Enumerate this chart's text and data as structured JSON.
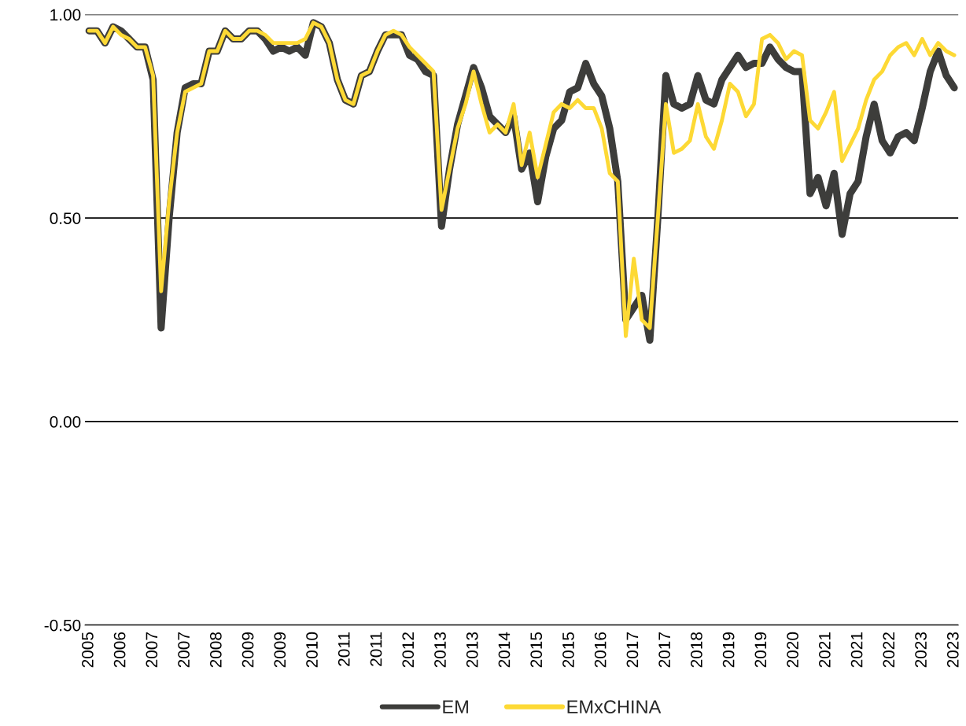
{
  "chart_data": {
    "type": "line",
    "categories": [
      "2005",
      null,
      null,
      null,
      "2006",
      null,
      null,
      null,
      "2007",
      null,
      null,
      null,
      "2007",
      null,
      null,
      null,
      "2008",
      null,
      null,
      null,
      "2009",
      null,
      null,
      null,
      "2009",
      null,
      null,
      null,
      "2010",
      null,
      null,
      null,
      "2011",
      null,
      null,
      null,
      "2011",
      null,
      null,
      null,
      "2012",
      null,
      null,
      null,
      "2013",
      null,
      null,
      null,
      "2013",
      null,
      null,
      null,
      "2014",
      null,
      null,
      null,
      "2015",
      null,
      null,
      null,
      "2015",
      null,
      null,
      null,
      "2016",
      null,
      null,
      null,
      "2017",
      null,
      null,
      null,
      "2017",
      null,
      null,
      null,
      "2018",
      null,
      null,
      null,
      "2019",
      null,
      null,
      null,
      "2019",
      null,
      null,
      null,
      "2020",
      null,
      null,
      null,
      "2021",
      null,
      null,
      null,
      "2021",
      null,
      null,
      null,
      "2022",
      null,
      null,
      null,
      "2023",
      null,
      null,
      null,
      "2023"
    ],
    "ylim": [
      -0.5,
      1.0
    ],
    "yticks": [
      {
        "value": -0.5,
        "label": "-0.50"
      },
      {
        "value": 0,
        "label": "0.00"
      },
      {
        "value": 0.5,
        "label": "0.50"
      },
      {
        "value": 1.0,
        "label": "1.00"
      }
    ],
    "grid": "y",
    "legend": "bottom",
    "marker": "none",
    "line_style": "solid",
    "series": [
      {
        "name": "EM",
        "color": "#3d3d3b",
        "values": [
          0.96,
          0.96,
          0.93,
          0.97,
          0.96,
          0.94,
          0.92,
          0.92,
          0.84,
          0.23,
          0.5,
          0.71,
          0.82,
          0.83,
          0.83,
          0.91,
          0.91,
          0.96,
          0.94,
          0.94,
          0.96,
          0.96,
          0.94,
          0.91,
          0.92,
          0.91,
          0.92,
          0.9,
          0.98,
          0.97,
          0.93,
          0.84,
          0.79,
          0.78,
          0.85,
          0.86,
          0.91,
          0.95,
          0.95,
          0.95,
          0.9,
          0.89,
          0.86,
          0.85,
          0.48,
          0.62,
          0.73,
          0.8,
          0.87,
          0.82,
          0.75,
          0.73,
          0.71,
          0.75,
          0.62,
          0.66,
          0.54,
          0.65,
          0.72,
          0.74,
          0.81,
          0.82,
          0.88,
          0.83,
          0.8,
          0.72,
          0.59,
          0.25,
          0.28,
          0.31,
          0.2,
          0.5,
          0.85,
          0.78,
          0.77,
          0.78,
          0.85,
          0.79,
          0.78,
          0.84,
          0.87,
          0.9,
          0.87,
          0.88,
          0.88,
          0.92,
          0.89,
          0.87,
          0.86,
          0.86,
          0.56,
          0.6,
          0.53,
          0.61,
          0.46,
          0.56,
          0.59,
          0.7,
          0.78,
          0.69,
          0.66,
          0.7,
          0.71,
          0.69,
          0.77,
          0.86,
          0.91,
          0.85,
          0.82
        ]
      },
      {
        "name": "EMxCHINA",
        "color": "#fdd935",
        "values": [
          0.96,
          0.96,
          0.93,
          0.97,
          0.95,
          0.94,
          0.92,
          0.92,
          0.85,
          0.32,
          0.54,
          0.71,
          0.81,
          0.82,
          0.83,
          0.91,
          0.91,
          0.96,
          0.94,
          0.94,
          0.96,
          0.96,
          0.95,
          0.93,
          0.93,
          0.93,
          0.93,
          0.94,
          0.98,
          0.97,
          0.93,
          0.84,
          0.79,
          0.78,
          0.85,
          0.86,
          0.91,
          0.95,
          0.96,
          0.95,
          0.92,
          0.9,
          0.88,
          0.86,
          0.52,
          0.62,
          0.72,
          0.78,
          0.86,
          0.78,
          0.71,
          0.73,
          0.71,
          0.78,
          0.63,
          0.71,
          0.6,
          0.68,
          0.76,
          0.78,
          0.77,
          0.79,
          0.77,
          0.77,
          0.72,
          0.61,
          0.59,
          0.21,
          0.4,
          0.25,
          0.23,
          0.5,
          0.78,
          0.66,
          0.67,
          0.69,
          0.78,
          0.7,
          0.67,
          0.74,
          0.83,
          0.81,
          0.75,
          0.78,
          0.94,
          0.95,
          0.93,
          0.89,
          0.91,
          0.9,
          0.74,
          0.72,
          0.76,
          0.81,
          0.64,
          0.68,
          0.72,
          0.79,
          0.84,
          0.86,
          0.9,
          0.92,
          0.93,
          0.9,
          0.94,
          0.9,
          0.93,
          0.91,
          0.9
        ]
      }
    ]
  }
}
